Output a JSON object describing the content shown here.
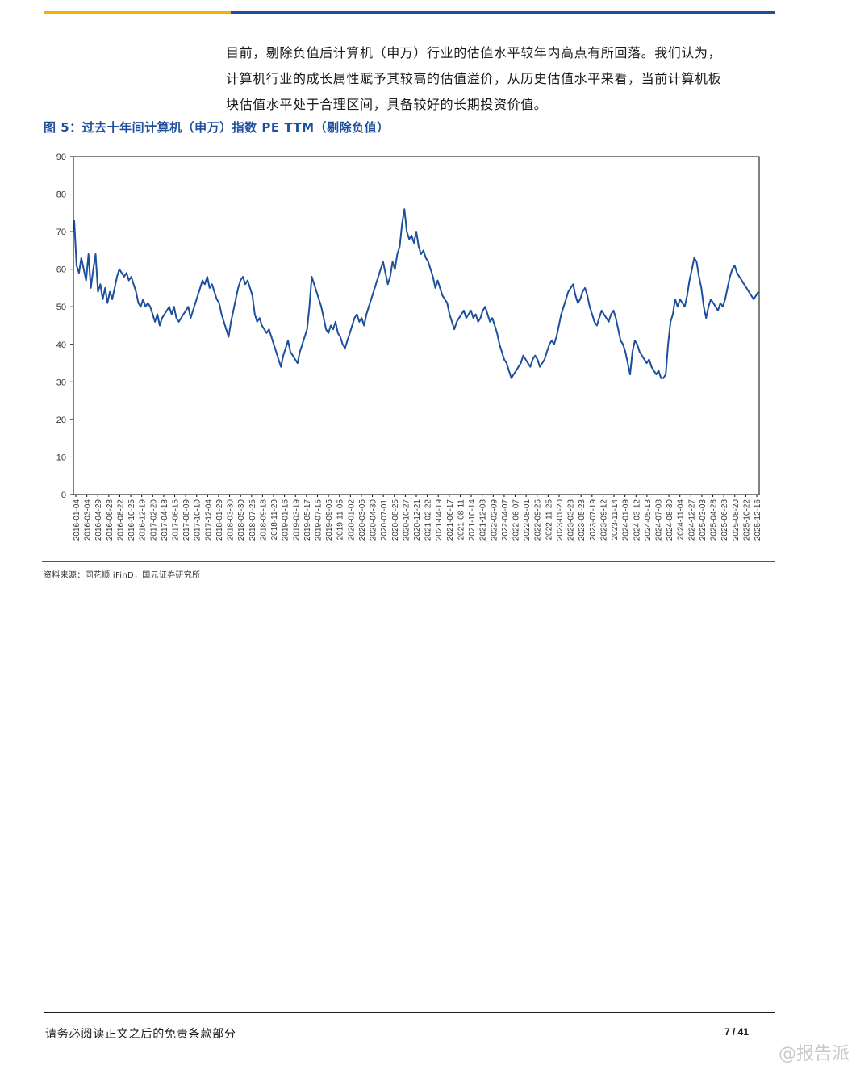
{
  "paragraph": {
    "lines": [
      "目前，剔除负值后计算机（申万）行业的估值水平较年内高点有所回落。我们认为，",
      "计算机行业的成长属性赋予其较高的估值溢价，从历史估值水平来看，当前计算机板",
      "块估值水平处于合理区间，具备较好的长期投资价值。"
    ]
  },
  "figure": {
    "title": "图 5：过去十年间计算机（申万）指数 PE TTM（剔除负值）",
    "source": "资料来源：同花顺 iFinD，国元证券研究所"
  },
  "chart_data": {
    "type": "line",
    "title": "",
    "xlabel": "",
    "ylabel": "",
    "ylim": [
      0,
      90
    ],
    "yticks": [
      0,
      10,
      20,
      30,
      40,
      50,
      60,
      70,
      80,
      90
    ],
    "grid": false,
    "line_color": "#1e4f9c",
    "x_tick_labels": [
      "2016-01-04",
      "2016-03-04",
      "2016-04-29",
      "2016-06-28",
      "2016-08-22",
      "2016-10-25",
      "2016-12-19",
      "2017-02-20",
      "2017-04-18",
      "2017-06-15",
      "2017-08-09",
      "2017-10-10",
      "2017-12-04",
      "2018-01-29",
      "2018-03-30",
      "2018-05-30",
      "2018-07-25",
      "2018-09-18",
      "2018-11-20",
      "2019-01-16",
      "2019-03-19",
      "2019-05-17",
      "2019-07-15",
      "2019-09-05",
      "2019-11-05",
      "2020-01-02",
      "2020-03-05",
      "2020-04-30",
      "2020-07-01",
      "2020-08-25",
      "2020-10-27",
      "2020-12-21",
      "2021-02-22",
      "2021-04-19",
      "2021-06-17",
      "2021-08-11",
      "2021-10-14",
      "2021-12-08",
      "2022-02-09",
      "2022-04-07",
      "2022-06-07",
      "2022-08-01",
      "2022-09-26",
      "2022-11-25",
      "2023-01-20",
      "2023-03-23",
      "2023-05-23",
      "2023-07-19",
      "2023-09-12",
      "2023-11-14",
      "2024-01-09",
      "2024-03-12",
      "2024-05-13",
      "2024-07-08",
      "2024-08-30",
      "2024-11-04",
      "2024-12-27",
      "2025-03-03",
      "2025-04-28",
      "2025-06-28",
      "2025-08-20",
      "2025-10-22",
      "2025-12-16"
    ],
    "series": [
      {
        "values": [
          73,
          61,
          59,
          63,
          60,
          57,
          64,
          55,
          60,
          64,
          54,
          56,
          52,
          55,
          51,
          54,
          52,
          55,
          58,
          60,
          59,
          58,
          59,
          57,
          58,
          56,
          54,
          51,
          50,
          52,
          50,
          51,
          50,
          48,
          46,
          48,
          45,
          47,
          48,
          49,
          50,
          48,
          50,
          47,
          46,
          47,
          48,
          49,
          50,
          47,
          49,
          51,
          53,
          55,
          57,
          56,
          58,
          55,
          56,
          54,
          52,
          51,
          48,
          46,
          44,
          42,
          46,
          49,
          52,
          55,
          57,
          58,
          56,
          57,
          55,
          53,
          48,
          46,
          47,
          45,
          44,
          43,
          44,
          42,
          40,
          38,
          36,
          34,
          37,
          39,
          41,
          38,
          37,
          36,
          35,
          38,
          40,
          42,
          44,
          50,
          58,
          56,
          54,
          52,
          50,
          47,
          44,
          43,
          45,
          44,
          46,
          43,
          42,
          40,
          39,
          41,
          43,
          45,
          47,
          48,
          46,
          47,
          45,
          48,
          50,
          52,
          54,
          56,
          58,
          60,
          62,
          59,
          56,
          58,
          62,
          60,
          64,
          66,
          72,
          76,
          70,
          68,
          69,
          67,
          70,
          66,
          64,
          65,
          63,
          62,
          60,
          58,
          55,
          57,
          55,
          53,
          52,
          51,
          48,
          46,
          44,
          46,
          47,
          48,
          49,
          47,
          48,
          49,
          47,
          48,
          46,
          47,
          49,
          50,
          48,
          46,
          47,
          45,
          43,
          40,
          38,
          36,
          35,
          33,
          31,
          32,
          33,
          34,
          35,
          37,
          36,
          35,
          34,
          36,
          37,
          36,
          34,
          35,
          36,
          38,
          40,
          41,
          40,
          42,
          45,
          48,
          50,
          52,
          54,
          55,
          56,
          53,
          51,
          52,
          54,
          55,
          53,
          50,
          48,
          46,
          45,
          47,
          49,
          48,
          47,
          46,
          48,
          49,
          47,
          44,
          41,
          40,
          38,
          35,
          32,
          38,
          41,
          40,
          38,
          37,
          36,
          35,
          36,
          34,
          33,
          32,
          33,
          31,
          31,
          32,
          40,
          46,
          48,
          52,
          50,
          52,
          51,
          50,
          53,
          57,
          60,
          63,
          62,
          58,
          55,
          50,
          47,
          50,
          52,
          51,
          50,
          49,
          51,
          50,
          52,
          55,
          58,
          60,
          61,
          59,
          58,
          57,
          56,
          55,
          54,
          53,
          52,
          53,
          54
        ]
      }
    ]
  },
  "footer": {
    "left": "请务必阅读正文之后的免责条款部分",
    "right": "7 / 41"
  },
  "watermark": "@报告派"
}
